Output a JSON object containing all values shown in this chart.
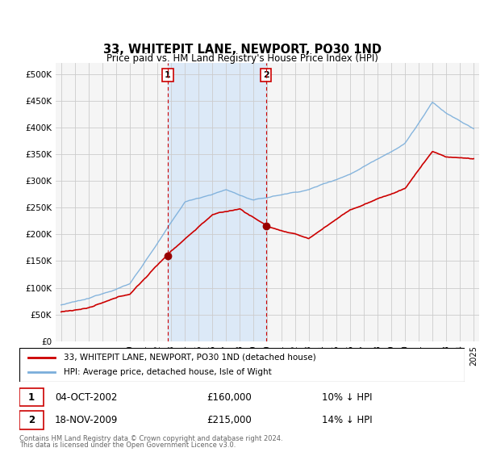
{
  "title": "33, WHITEPIT LANE, NEWPORT, PO30 1ND",
  "subtitle": "Price paid vs. HM Land Registry's House Price Index (HPI)",
  "ylabel_ticks": [
    "£0",
    "£50K",
    "£100K",
    "£150K",
    "£200K",
    "£250K",
    "£300K",
    "£350K",
    "£400K",
    "£450K",
    "£500K"
  ],
  "ytick_values": [
    0,
    50000,
    100000,
    150000,
    200000,
    250000,
    300000,
    350000,
    400000,
    450000,
    500000
  ],
  "ylim": [
    0,
    520000
  ],
  "xlim_start": 1994.6,
  "xlim_end": 2025.4,
  "background_color": "#f5f5f5",
  "plot_bg_color": "#f5f5f5",
  "shaded_bg": "#dce9f7",
  "transaction1": {
    "date_x": 2002.75,
    "price": 160000,
    "label": "1"
  },
  "transaction2": {
    "date_x": 2009.9,
    "price": 215000,
    "label": "2"
  },
  "legend_line1": "33, WHITEPIT LANE, NEWPORT, PO30 1ND (detached house)",
  "legend_line2": "HPI: Average price, detached house, Isle of Wight",
  "footnote1": "Contains HM Land Registry data © Crown copyright and database right 2024.",
  "footnote2": "This data is licensed under the Open Government Licence v3.0.",
  "line_color_red": "#cc0000",
  "line_color_blue": "#7aaedb",
  "vline_color": "#cc0000",
  "grid_color": "#cccccc",
  "marker_color": "#990000"
}
